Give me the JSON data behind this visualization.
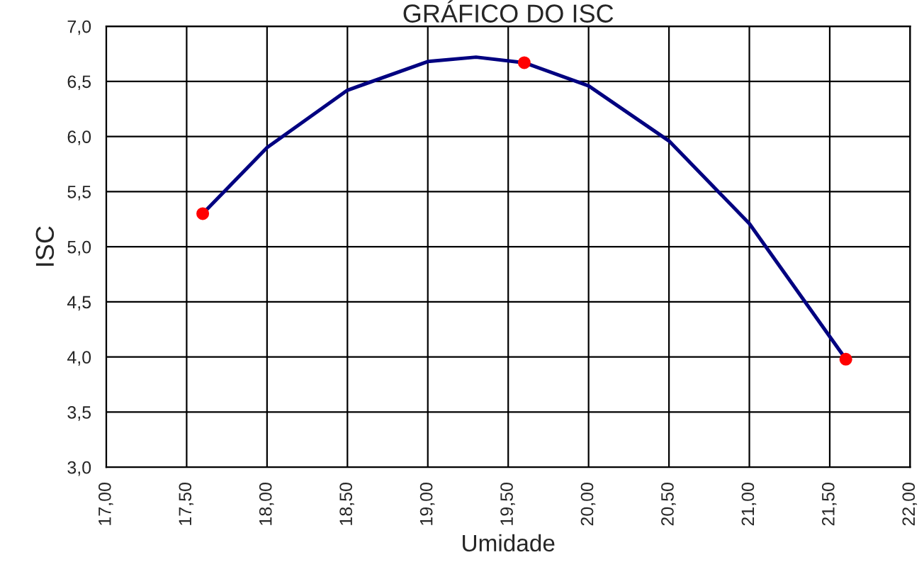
{
  "chart_data": {
    "type": "scatter",
    "title": "GRÁFICO DO ISC",
    "xlabel": "Umidade",
    "ylabel": "ISC",
    "series": [
      {
        "type": "line",
        "color": "#000080",
        "marker": "none",
        "x": [
          17.6,
          18.0,
          18.5,
          19.0,
          19.3,
          19.6,
          20.0,
          20.5,
          21.0,
          21.6
        ],
        "values": [
          5.3,
          5.9,
          6.42,
          6.68,
          6.72,
          6.67,
          6.46,
          5.96,
          5.21,
          3.98
        ]
      },
      {
        "color": "#ff0000",
        "marker": "circle",
        "x": [
          17.6,
          19.6,
          21.6
        ],
        "values": [
          5.3,
          6.67,
          3.98
        ]
      }
    ],
    "xlim": [
      17.0,
      22.0
    ],
    "xticks": [
      {
        "value": 17.0,
        "label": "17,00"
      },
      {
        "value": 17.5,
        "label": "17,50"
      },
      {
        "value": 18.0,
        "label": "18,00"
      },
      {
        "value": 18.5,
        "label": "18,50"
      },
      {
        "value": 19.0,
        "label": "19,00"
      },
      {
        "value": 19.5,
        "label": "19,50"
      },
      {
        "value": 20.0,
        "label": "20,00"
      },
      {
        "value": 20.5,
        "label": "20,50"
      },
      {
        "value": 21.0,
        "label": "21,00"
      },
      {
        "value": 21.5,
        "label": "21,50"
      },
      {
        "value": 22.0,
        "label": "22,00"
      }
    ],
    "ylim": [
      3.0,
      7.0
    ],
    "yticks": [
      {
        "value": 3.0,
        "label": "3,0"
      },
      {
        "value": 3.5,
        "label": "3,5"
      },
      {
        "value": 4.0,
        "label": "4,0"
      },
      {
        "value": 4.5,
        "label": "4,5"
      },
      {
        "value": 5.0,
        "label": "5,0"
      },
      {
        "value": 5.5,
        "label": "5,5"
      },
      {
        "value": 6.0,
        "label": "6,0"
      },
      {
        "value": 6.5,
        "label": "6,5"
      },
      {
        "value": 7.0,
        "label": "7,0"
      }
    ],
    "grid": true
  }
}
